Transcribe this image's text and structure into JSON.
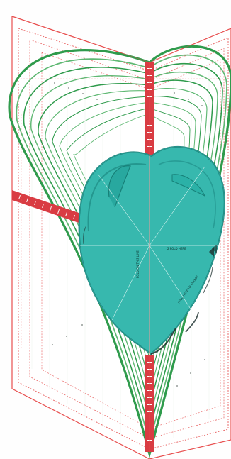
{
  "image": {
    "subject": "heart-shaped-template",
    "labels": {
      "center_label": "2 FOLD HERE",
      "vertical_label": "FOLD ON THIS LINE",
      "bottom_label": "FOLD HERE TO CREASE"
    }
  },
  "colors": {
    "background": "#fefefe",
    "red_outline": "#e84f4f",
    "red_dotted": "#ea6d6d",
    "ruler_red": "#d93c43",
    "ruler_light": "#f0a3a8",
    "green_outline": "#2f9b4c",
    "green_light": "#5fb873",
    "teal_heart": "#37b8ae",
    "teal_dark": "#1f8e87",
    "teal_shadow": "#178078",
    "white_line": "#f6fffd",
    "dark_mark": "#1c2f2d"
  },
  "icons": {
    "fold_icon": "fold-icon"
  }
}
